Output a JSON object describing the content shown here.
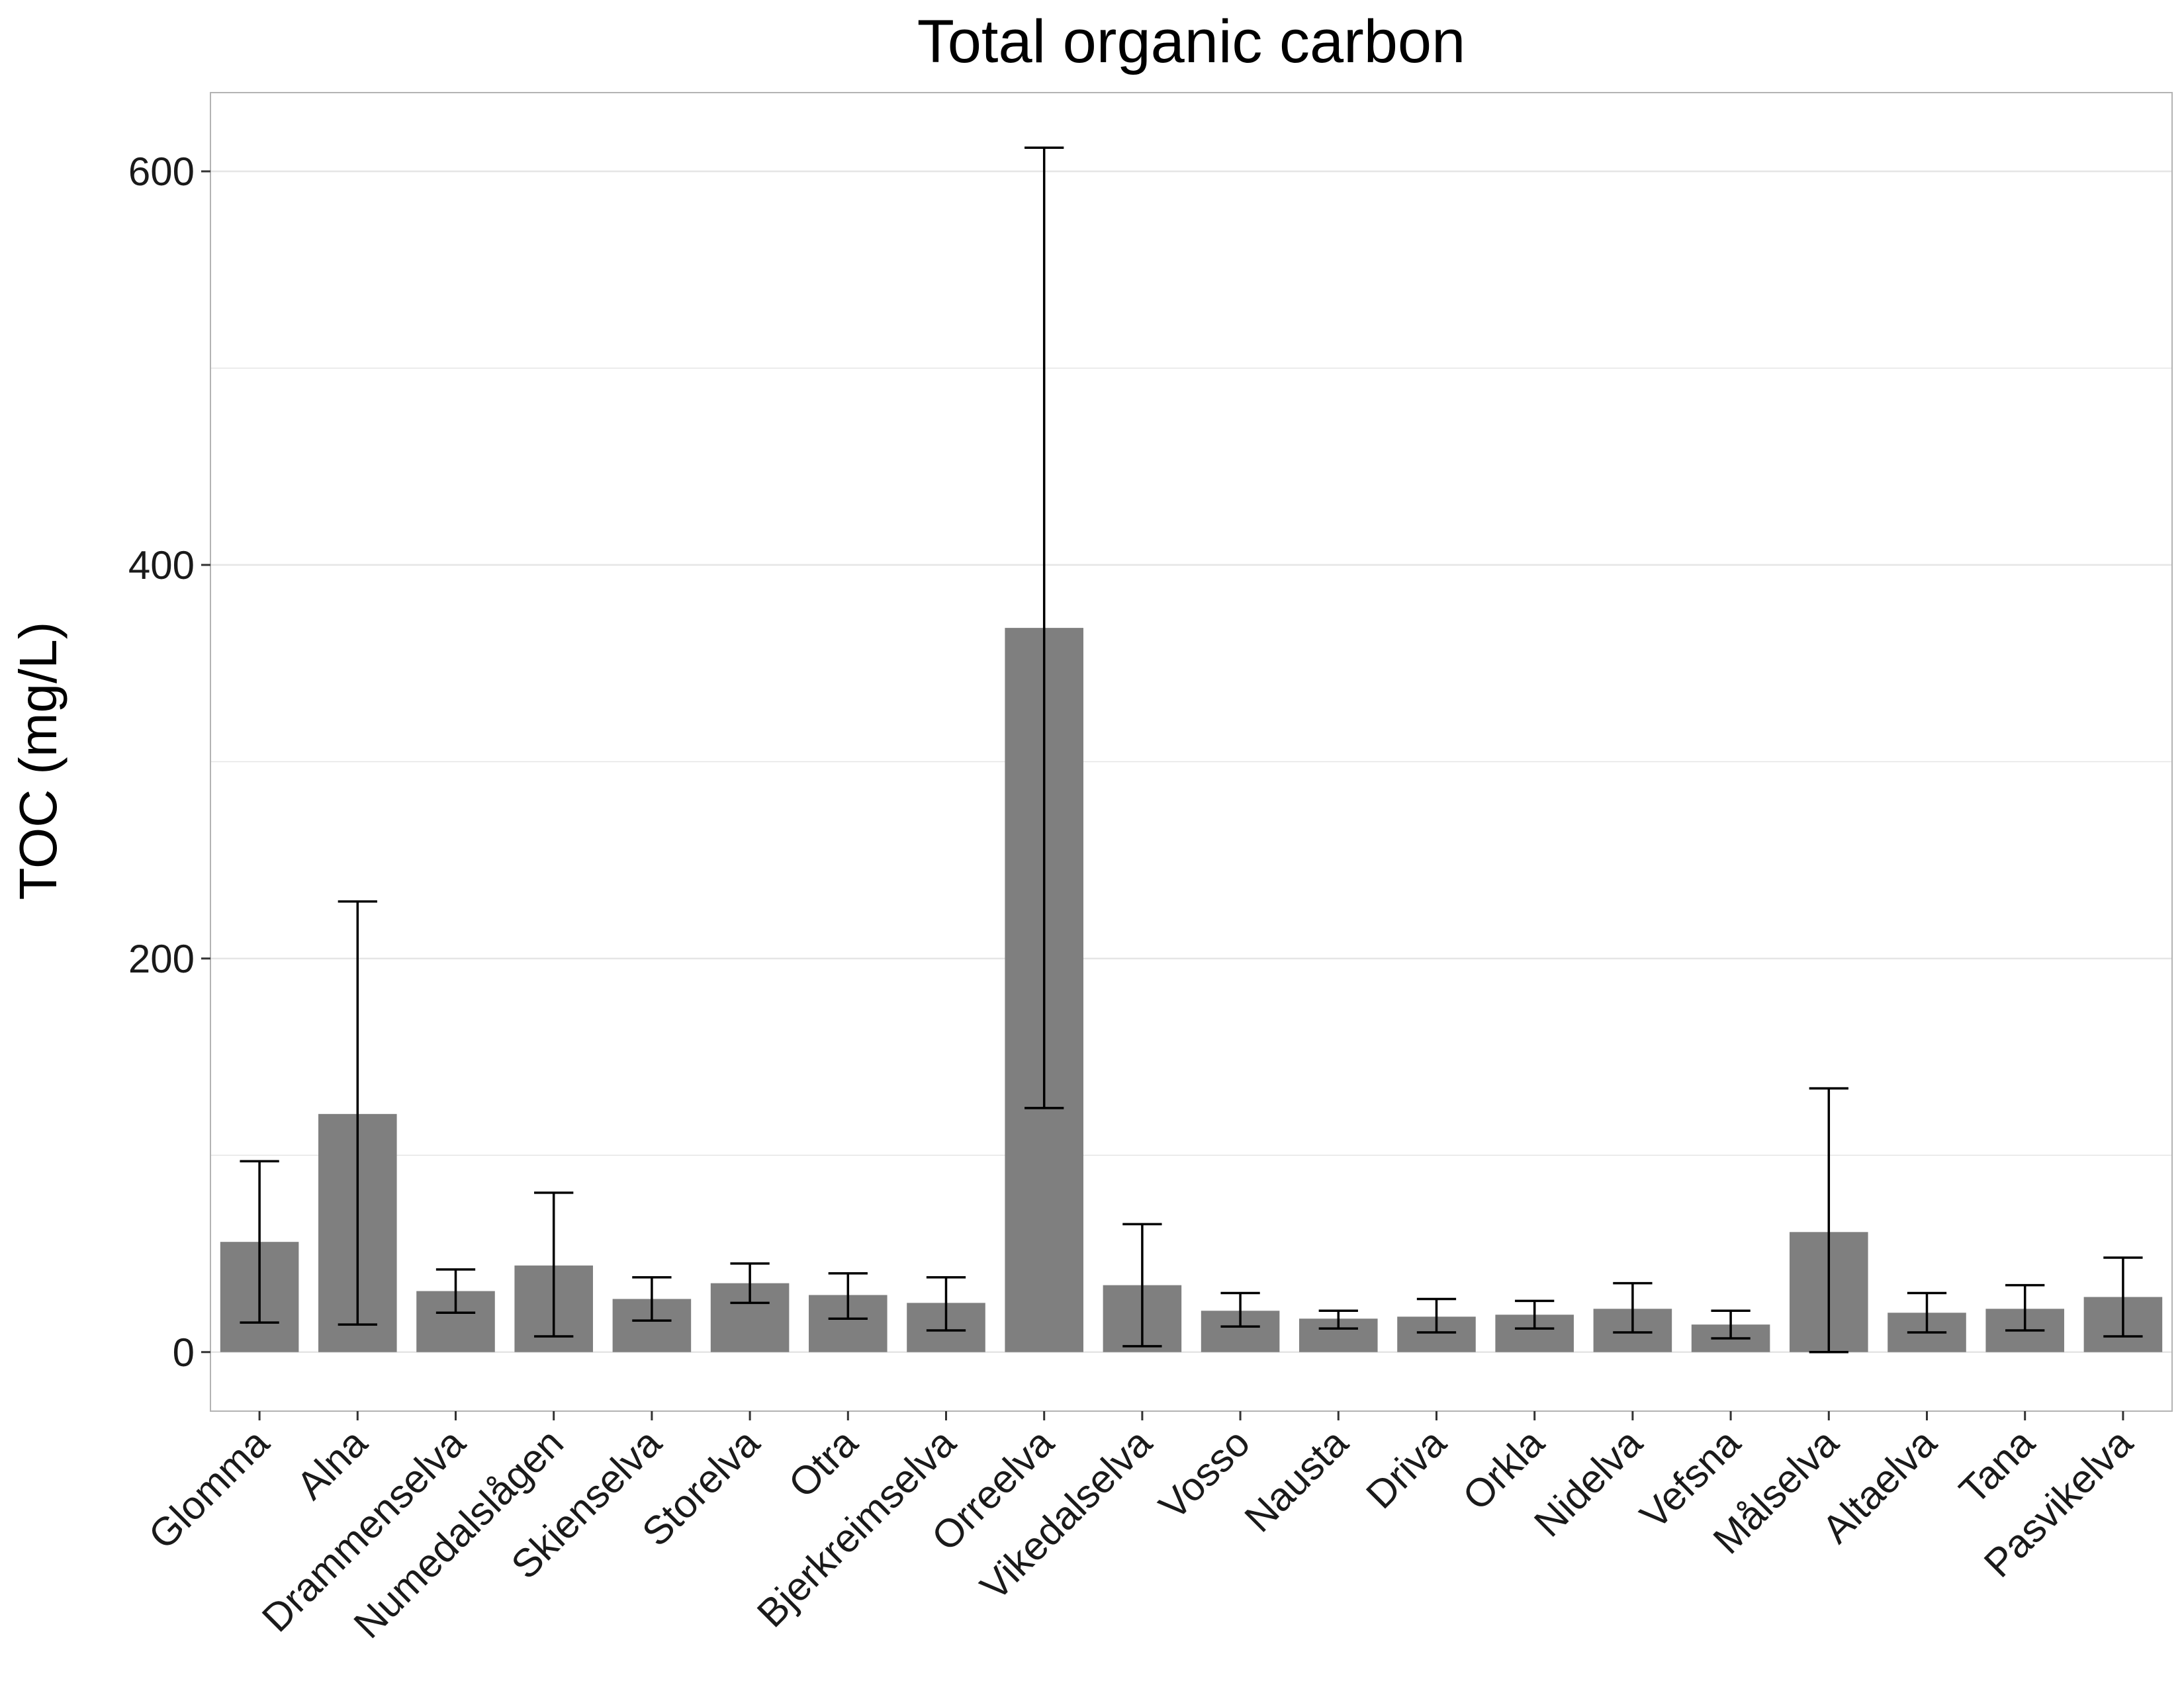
{
  "chart_data": {
    "type": "bar",
    "title": "Total organic carbon",
    "xlabel": "",
    "ylabel": "TOC (mg/L)",
    "ylim": [
      -30,
      640
    ],
    "yticks": [
      0,
      200,
      400,
      600
    ],
    "grid": true,
    "legend": "none",
    "colors": {
      "bar": "#7f7f7f",
      "error_bar": "#000000",
      "grid": "#e5e5e5",
      "panel_border": "#b3b3b3"
    },
    "categories": [
      "Glomma",
      "Alna",
      "Drammenselva",
      "Numedalslågen",
      "Skienselva",
      "Storelva",
      "Otra",
      "Bjerkreimselva",
      "Orreelva",
      "Vikedalselva",
      "Vosso",
      "Nausta",
      "Driva",
      "Orkla",
      "Nidelva",
      "Vefsna",
      "Målselva",
      "Altaelva",
      "Tana",
      "Pasvikelva"
    ],
    "values": [
      56,
      121,
      31,
      44,
      27,
      35,
      29,
      25,
      368,
      34,
      21,
      17,
      18,
      19,
      22,
      14,
      61,
      20,
      22,
      28
    ],
    "error_low": [
      15,
      14,
      20,
      8,
      16,
      25,
      17,
      11,
      124,
      3,
      13,
      12,
      10,
      12,
      10,
      7,
      0,
      10,
      11,
      8
    ],
    "error_high": [
      97,
      229,
      42,
      81,
      38,
      45,
      40,
      38,
      612,
      65,
      30,
      21,
      27,
      26,
      35,
      21,
      134,
      30,
      34,
      48
    ]
  }
}
